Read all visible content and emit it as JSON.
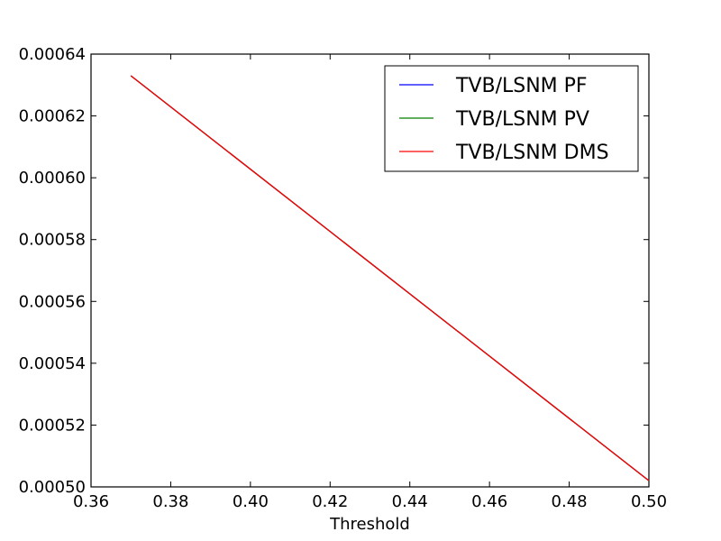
{
  "chart_data": {
    "type": "line",
    "title": "",
    "xlabel": "Threshold",
    "ylabel": "",
    "xlim": [
      0.36,
      0.5
    ],
    "ylim": [
      0.0005,
      0.00064
    ],
    "x_ticks": [
      0.36,
      0.38,
      0.4,
      0.42,
      0.44,
      0.46,
      0.48,
      0.5
    ],
    "y_ticks": [
      0.0005,
      0.00052,
      0.00054,
      0.00056,
      0.00058,
      0.0006,
      0.00062,
      0.00064
    ],
    "x_tick_labels": [
      "0.36",
      "0.38",
      "0.40",
      "0.42",
      "0.44",
      "0.46",
      "0.48",
      "0.50"
    ],
    "y_tick_labels": [
      "0.00050",
      "0.00052",
      "0.00054",
      "0.00056",
      "0.00058",
      "0.00060",
      "0.00062",
      "0.00064"
    ],
    "grid": false,
    "legend_position": "top-right",
    "series": [
      {
        "name": "TVB/LSNM PF",
        "color": "#0000ff",
        "x": [
          0.37,
          0.5
        ],
        "y": [
          0.000633,
          0.000502
        ]
      },
      {
        "name": "TVB/LSNM PV",
        "color": "#008000",
        "x": [
          0.37,
          0.5
        ],
        "y": [
          0.000633,
          0.000502
        ]
      },
      {
        "name": "TVB/LSNM DMS",
        "color": "#ff0000",
        "x": [
          0.37,
          0.5
        ],
        "y": [
          0.000633,
          0.000502
        ]
      }
    ]
  }
}
